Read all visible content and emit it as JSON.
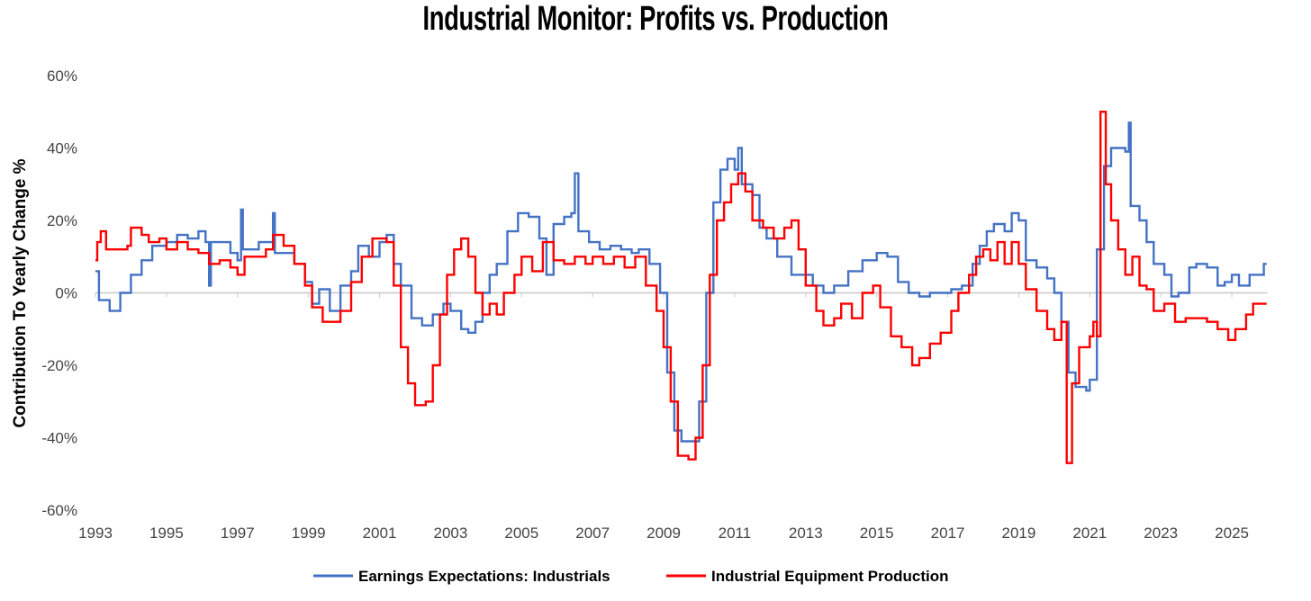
{
  "chart_data": {
    "type": "line",
    "title": "Industrial Monitor: Profits vs. Production",
    "xlabel": "",
    "ylabel": "Contribution To Yearly Change %",
    "xlim": [
      1993,
      2026
    ],
    "ylim": [
      -60,
      60
    ],
    "x_ticks": [
      "1993",
      "1995",
      "1997",
      "1999",
      "2001",
      "2003",
      "2005",
      "2007",
      "2009",
      "2011",
      "2013",
      "2015",
      "2017",
      "2019",
      "2021",
      "2023",
      "2025"
    ],
    "y_ticks": [
      "60%",
      "40%",
      "20%",
      "0%",
      "-20%",
      "-40%",
      "-60%"
    ],
    "y_tick_values": [
      60,
      40,
      20,
      0,
      -20,
      -40,
      -60
    ],
    "grid": "zero-line only",
    "legend_position": "bottom",
    "series": [
      {
        "name": "Earnings Expectations: Industrials",
        "color": "#4472C4",
        "points": [
          [
            1993.0,
            6
          ],
          [
            1993.1,
            -2
          ],
          [
            1993.4,
            -5
          ],
          [
            1993.7,
            0
          ],
          [
            1994.0,
            5
          ],
          [
            1994.3,
            9
          ],
          [
            1994.6,
            13
          ],
          [
            1995.0,
            14
          ],
          [
            1995.3,
            16
          ],
          [
            1995.6,
            15
          ],
          [
            1995.9,
            17
          ],
          [
            1996.1,
            14
          ],
          [
            1996.2,
            2
          ],
          [
            1996.25,
            14
          ],
          [
            1996.5,
            14
          ],
          [
            1996.8,
            11
          ],
          [
            1997.0,
            9
          ],
          [
            1997.1,
            23
          ],
          [
            1997.15,
            12
          ],
          [
            1997.6,
            14
          ],
          [
            1997.9,
            14
          ],
          [
            1998.0,
            22
          ],
          [
            1998.05,
            11
          ],
          [
            1998.6,
            8
          ],
          [
            1998.9,
            3
          ],
          [
            1999.1,
            -3
          ],
          [
            1999.3,
            1
          ],
          [
            1999.6,
            -5
          ],
          [
            1999.9,
            2
          ],
          [
            2000.2,
            6
          ],
          [
            2000.4,
            13
          ],
          [
            2000.7,
            10
          ],
          [
            2001.0,
            14
          ],
          [
            2001.2,
            16
          ],
          [
            2001.4,
            8
          ],
          [
            2001.6,
            2
          ],
          [
            2001.9,
            -7
          ],
          [
            2002.2,
            -9
          ],
          [
            2002.5,
            -6
          ],
          [
            2002.8,
            -3
          ],
          [
            2003.0,
            -5
          ],
          [
            2003.3,
            -10
          ],
          [
            2003.5,
            -11
          ],
          [
            2003.7,
            -8
          ],
          [
            2003.9,
            0
          ],
          [
            2004.1,
            5
          ],
          [
            2004.3,
            8
          ],
          [
            2004.6,
            17
          ],
          [
            2004.9,
            22
          ],
          [
            2005.2,
            21
          ],
          [
            2005.5,
            15
          ],
          [
            2005.7,
            5
          ],
          [
            2005.9,
            19
          ],
          [
            2006.2,
            21
          ],
          [
            2006.4,
            22
          ],
          [
            2006.5,
            33
          ],
          [
            2006.6,
            17
          ],
          [
            2006.9,
            14
          ],
          [
            2007.2,
            12
          ],
          [
            2007.5,
            13
          ],
          [
            2007.8,
            12
          ],
          [
            2008.1,
            11
          ],
          [
            2008.3,
            12
          ],
          [
            2008.6,
            8
          ],
          [
            2008.9,
            0
          ],
          [
            2009.1,
            -22
          ],
          [
            2009.3,
            -38
          ],
          [
            2009.5,
            -41
          ],
          [
            2009.8,
            -41
          ],
          [
            2010.0,
            -30
          ],
          [
            2010.2,
            0
          ],
          [
            2010.4,
            25
          ],
          [
            2010.6,
            34
          ],
          [
            2010.8,
            37
          ],
          [
            2011.0,
            34
          ],
          [
            2011.1,
            40
          ],
          [
            2011.2,
            30
          ],
          [
            2011.5,
            27
          ],
          [
            2011.7,
            18
          ],
          [
            2011.9,
            15
          ],
          [
            2012.2,
            10
          ],
          [
            2012.6,
            5
          ],
          [
            2012.9,
            5
          ],
          [
            2013.2,
            2
          ],
          [
            2013.5,
            0
          ],
          [
            2013.8,
            2
          ],
          [
            2014.2,
            6
          ],
          [
            2014.6,
            9
          ],
          [
            2015.0,
            11
          ],
          [
            2015.3,
            10
          ],
          [
            2015.6,
            3
          ],
          [
            2015.9,
            0
          ],
          [
            2016.2,
            -1
          ],
          [
            2016.5,
            0
          ],
          [
            2016.8,
            0
          ],
          [
            2017.1,
            1
          ],
          [
            2017.4,
            2
          ],
          [
            2017.7,
            8
          ],
          [
            2017.9,
            13
          ],
          [
            2018.1,
            17
          ],
          [
            2018.3,
            19
          ],
          [
            2018.6,
            17
          ],
          [
            2018.8,
            22
          ],
          [
            2019.0,
            20
          ],
          [
            2019.2,
            9
          ],
          [
            2019.5,
            7
          ],
          [
            2019.8,
            4
          ],
          [
            2020.0,
            0
          ],
          [
            2020.2,
            -8
          ],
          [
            2020.4,
            -22
          ],
          [
            2020.6,
            -26
          ],
          [
            2020.9,
            -27
          ],
          [
            2021.0,
            -24
          ],
          [
            2021.2,
            12
          ],
          [
            2021.4,
            35
          ],
          [
            2021.6,
            40
          ],
          [
            2021.9,
            40
          ],
          [
            2022.0,
            39
          ],
          [
            2022.1,
            47
          ],
          [
            2022.15,
            24
          ],
          [
            2022.4,
            20
          ],
          [
            2022.6,
            14
          ],
          [
            2022.8,
            8
          ],
          [
            2023.1,
            5
          ],
          [
            2023.3,
            -1
          ],
          [
            2023.5,
            0
          ],
          [
            2023.8,
            7
          ],
          [
            2024.0,
            8
          ],
          [
            2024.3,
            7
          ],
          [
            2024.6,
            2
          ],
          [
            2024.8,
            3
          ],
          [
            2025.0,
            5
          ],
          [
            2025.2,
            2
          ],
          [
            2025.5,
            5
          ],
          [
            2025.9,
            8
          ]
        ]
      },
      {
        "name": "Industrial Equipment Production",
        "color": "#FF0000",
        "points": [
          [
            1993.0,
            9
          ],
          [
            1993.05,
            14
          ],
          [
            1993.15,
            17
          ],
          [
            1993.3,
            12
          ],
          [
            1993.6,
            12
          ],
          [
            1993.9,
            13
          ],
          [
            1994.0,
            18
          ],
          [
            1994.3,
            16
          ],
          [
            1994.5,
            14
          ],
          [
            1994.8,
            15
          ],
          [
            1995.0,
            12
          ],
          [
            1995.3,
            14
          ],
          [
            1995.6,
            12
          ],
          [
            1995.9,
            11
          ],
          [
            1996.2,
            8
          ],
          [
            1996.5,
            9
          ],
          [
            1996.8,
            7
          ],
          [
            1997.0,
            5
          ],
          [
            1997.2,
            10
          ],
          [
            1997.5,
            10
          ],
          [
            1997.8,
            12
          ],
          [
            1998.0,
            16
          ],
          [
            1998.3,
            13
          ],
          [
            1998.6,
            8
          ],
          [
            1998.9,
            2
          ],
          [
            1999.1,
            -4
          ],
          [
            1999.4,
            -8
          ],
          [
            1999.7,
            -8
          ],
          [
            1999.9,
            -5
          ],
          [
            2000.2,
            3
          ],
          [
            2000.5,
            10
          ],
          [
            2000.8,
            15
          ],
          [
            2001.0,
            15
          ],
          [
            2001.2,
            14
          ],
          [
            2001.4,
            2
          ],
          [
            2001.6,
            -15
          ],
          [
            2001.8,
            -25
          ],
          [
            2002.0,
            -31
          ],
          [
            2002.3,
            -30
          ],
          [
            2002.5,
            -20
          ],
          [
            2002.7,
            -6
          ],
          [
            2002.9,
            5
          ],
          [
            2003.1,
            12
          ],
          [
            2003.3,
            15
          ],
          [
            2003.5,
            10
          ],
          [
            2003.7,
            0
          ],
          [
            2003.9,
            -6
          ],
          [
            2004.1,
            -3
          ],
          [
            2004.3,
            -6
          ],
          [
            2004.5,
            0
          ],
          [
            2004.8,
            5
          ],
          [
            2005.0,
            10
          ],
          [
            2005.3,
            6
          ],
          [
            2005.6,
            14
          ],
          [
            2005.9,
            9
          ],
          [
            2006.2,
            8
          ],
          [
            2006.5,
            10
          ],
          [
            2006.8,
            8
          ],
          [
            2007.0,
            10
          ],
          [
            2007.3,
            8
          ],
          [
            2007.6,
            10
          ],
          [
            2007.9,
            7
          ],
          [
            2008.2,
            10
          ],
          [
            2008.5,
            2
          ],
          [
            2008.8,
            -5
          ],
          [
            2009.0,
            -15
          ],
          [
            2009.2,
            -30
          ],
          [
            2009.4,
            -45
          ],
          [
            2009.7,
            -46
          ],
          [
            2009.9,
            -40
          ],
          [
            2010.1,
            -20
          ],
          [
            2010.3,
            5
          ],
          [
            2010.5,
            20
          ],
          [
            2010.7,
            25
          ],
          [
            2010.9,
            30
          ],
          [
            2011.1,
            33
          ],
          [
            2011.3,
            28
          ],
          [
            2011.5,
            20
          ],
          [
            2011.8,
            18
          ],
          [
            2012.1,
            15
          ],
          [
            2012.4,
            18
          ],
          [
            2012.6,
            20
          ],
          [
            2012.8,
            12
          ],
          [
            2013.0,
            2
          ],
          [
            2013.3,
            -5
          ],
          [
            2013.5,
            -9
          ],
          [
            2013.8,
            -7
          ],
          [
            2014.0,
            -3
          ],
          [
            2014.3,
            -7
          ],
          [
            2014.6,
            0
          ],
          [
            2014.9,
            2
          ],
          [
            2015.1,
            -4
          ],
          [
            2015.4,
            -12
          ],
          [
            2015.7,
            -15
          ],
          [
            2016.0,
            -20
          ],
          [
            2016.2,
            -18
          ],
          [
            2016.5,
            -14
          ],
          [
            2016.8,
            -11
          ],
          [
            2017.1,
            -5
          ],
          [
            2017.3,
            0
          ],
          [
            2017.6,
            5
          ],
          [
            2017.8,
            10
          ],
          [
            2018.0,
            12
          ],
          [
            2018.2,
            9
          ],
          [
            2018.4,
            14
          ],
          [
            2018.6,
            8
          ],
          [
            2018.8,
            14
          ],
          [
            2019.0,
            8
          ],
          [
            2019.2,
            1
          ],
          [
            2019.5,
            -5
          ],
          [
            2019.8,
            -10
          ],
          [
            2020.0,
            -13
          ],
          [
            2020.2,
            -8
          ],
          [
            2020.35,
            -47
          ],
          [
            2020.5,
            -25
          ],
          [
            2020.7,
            -15
          ],
          [
            2021.0,
            -12
          ],
          [
            2021.1,
            -8
          ],
          [
            2021.2,
            -12
          ],
          [
            2021.3,
            50
          ],
          [
            2021.45,
            30
          ],
          [
            2021.6,
            20
          ],
          [
            2021.8,
            12
          ],
          [
            2022.0,
            5
          ],
          [
            2022.2,
            10
          ],
          [
            2022.4,
            2
          ],
          [
            2022.6,
            1
          ],
          [
            2022.8,
            -5
          ],
          [
            2023.1,
            -3
          ],
          [
            2023.4,
            -8
          ],
          [
            2023.7,
            -7
          ],
          [
            2024.0,
            -7
          ],
          [
            2024.3,
            -8
          ],
          [
            2024.6,
            -10
          ],
          [
            2024.9,
            -13
          ],
          [
            2025.1,
            -10
          ],
          [
            2025.4,
            -6
          ],
          [
            2025.6,
            -3
          ],
          [
            2025.9,
            -3
          ]
        ]
      }
    ]
  }
}
